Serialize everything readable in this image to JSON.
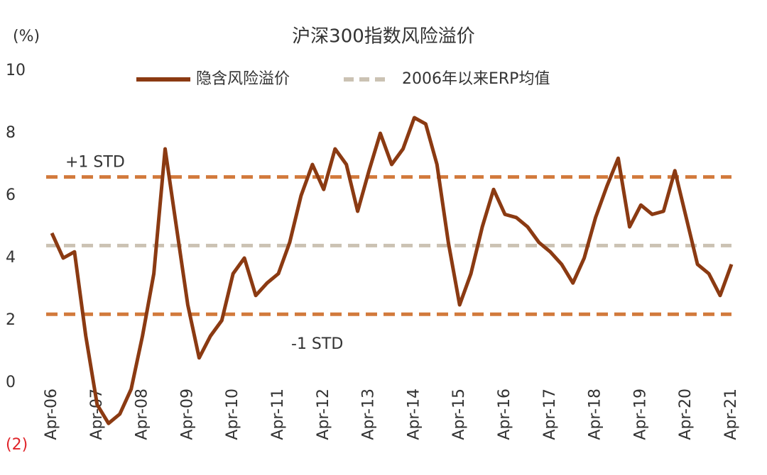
{
  "chart_data": {
    "type": "line",
    "title": "沪深300指数风险溢价",
    "y_unit": "(%)",
    "categories": [
      "Apr-06",
      null,
      null,
      null,
      "Apr-07",
      null,
      null,
      null,
      "Apr-08",
      null,
      null,
      null,
      "Apr-09",
      null,
      null,
      null,
      "Apr-10",
      null,
      null,
      null,
      "Apr-11",
      null,
      null,
      null,
      "Apr-12",
      null,
      null,
      null,
      "Apr-13",
      null,
      null,
      null,
      "Apr-14",
      null,
      null,
      null,
      "Apr-15",
      null,
      null,
      null,
      "Apr-16",
      null,
      null,
      null,
      "Apr-17",
      null,
      null,
      null,
      "Apr-18",
      null,
      null,
      null,
      "Apr-19",
      null,
      null,
      null,
      "Apr-20",
      null,
      null,
      null,
      "Apr-21"
    ],
    "series": [
      {
        "name": "隐含风险溢价",
        "color": "#8b3a12",
        "values": [
          4.8,
          4.0,
          4.2,
          1.5,
          -0.7,
          -1.3,
          -1.0,
          -0.2,
          1.5,
          3.5,
          7.5,
          5.0,
          2.5,
          0.8,
          1.5,
          2.0,
          3.5,
          4.0,
          2.8,
          3.2,
          3.5,
          4.5,
          6.0,
          7.0,
          6.2,
          7.5,
          7.0,
          5.5,
          6.8,
          8.0,
          7.0,
          7.5,
          8.5,
          8.3,
          7.0,
          4.5,
          2.5,
          3.5,
          5.0,
          6.2,
          5.4,
          5.3,
          5.0,
          4.5,
          4.2,
          3.8,
          3.2,
          4.0,
          5.3,
          6.3,
          7.2,
          5.0,
          5.7,
          5.4,
          5.5,
          6.8,
          5.3,
          3.8,
          3.5,
          2.8,
          3.8
        ]
      }
    ],
    "reference_lines": [
      {
        "name": "2006年以来ERP均值",
        "value": 4.4,
        "color": "#cbc2b3"
      },
      {
        "label": "+1 STD",
        "value": 6.6,
        "color": "#d27a3c"
      },
      {
        "label": "-1 STD",
        "value": 2.2,
        "color": "#d27a3c"
      }
    ],
    "ylim": [
      -2,
      10
    ],
    "yticks": [
      {
        "value": -2,
        "label": "(2)"
      },
      0,
      2,
      4,
      6,
      8,
      10
    ],
    "grid": false
  }
}
